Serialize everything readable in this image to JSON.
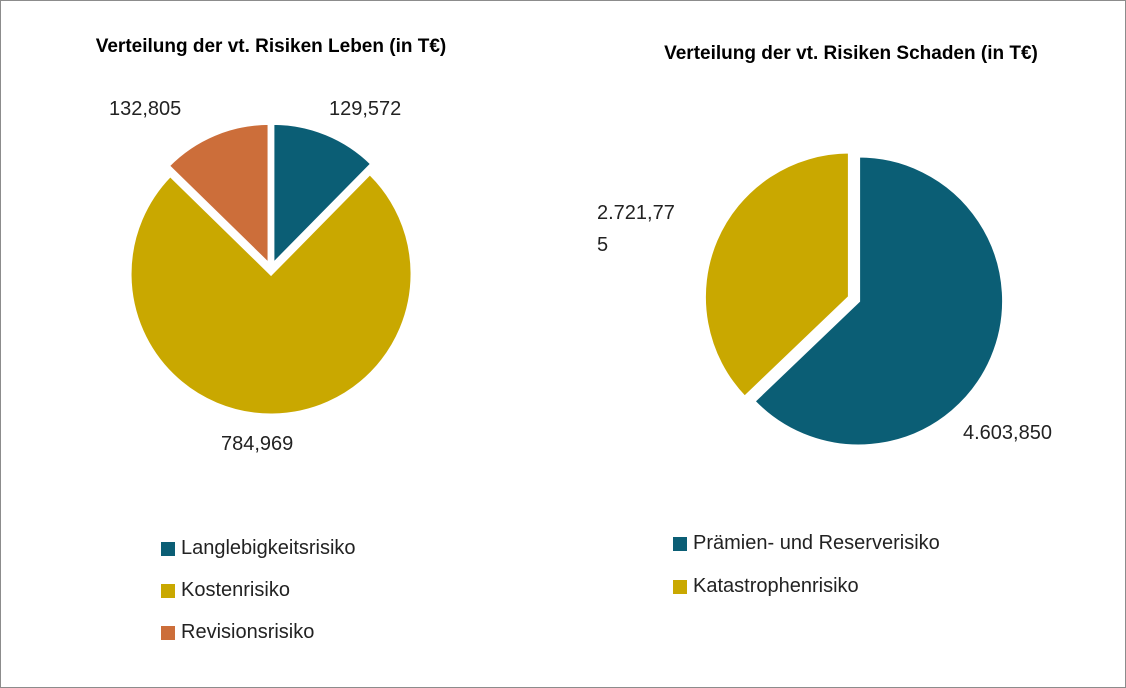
{
  "chart_data": [
    {
      "type": "pie",
      "title": "Verteilung der vt. Risiken Leben (in T€)",
      "categories": [
        "Langlebigkeitsrisiko",
        "Kostenrisiko",
        "Revisionsrisiko"
      ],
      "values": [
        129.572,
        784.969,
        132.805
      ],
      "value_labels": [
        "129,572",
        "784,969",
        "132,805"
      ],
      "colors": [
        "#0b5e75",
        "#c9a800",
        "#cc6e3a"
      ]
    },
    {
      "type": "pie",
      "title": "Verteilung der vt. Risiken Schaden (in T€)",
      "categories": [
        "Prämien- und Reserverisiko",
        "Katastrophenrisiko"
      ],
      "values": [
        4603.85,
        2721.775
      ],
      "value_labels": [
        "4.603,850",
        "2.721,775"
      ],
      "colors": [
        "#0b5e75",
        "#c9a800"
      ]
    }
  ]
}
